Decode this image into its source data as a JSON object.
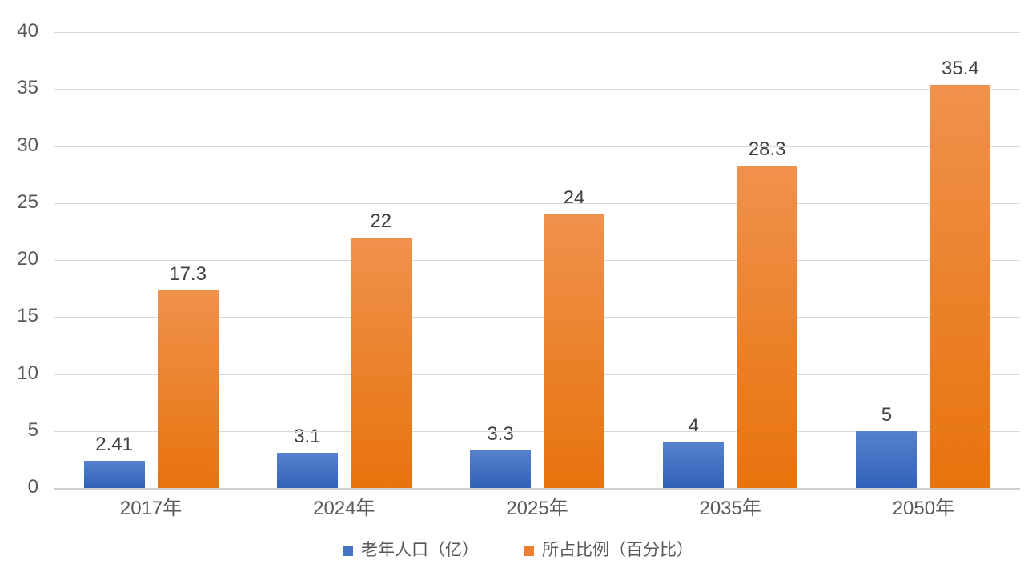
{
  "chart_data": {
    "type": "bar",
    "title": "",
    "xlabel": "",
    "ylabel": "",
    "categories": [
      "2017年",
      "2024年",
      "2025年",
      "2035年",
      "2050年"
    ],
    "series": [
      {
        "name": "老年人口（亿）",
        "values": [
          2.41,
          3.1,
          3.3,
          4,
          5
        ],
        "data_labels": [
          "2.41",
          "3.1",
          "3.3",
          "4",
          "5"
        ],
        "color_top": "#5581CE",
        "color_bottom": "#3161B8",
        "legend_color": "#4472C4"
      },
      {
        "name": "所占比例（百分比）",
        "values": [
          17.3,
          22,
          24,
          28.3,
          35.4
        ],
        "data_labels": [
          "17.3",
          "22",
          "24",
          "28.3",
          "35.4"
        ],
        "color_top": "#F0914C",
        "color_bottom": "#E8730D",
        "legend_color": "#ED7D31"
      }
    ],
    "ylim": [
      0,
      40
    ],
    "ytick_step": 5,
    "yticks": [
      "0",
      "5",
      "10",
      "15",
      "20",
      "25",
      "30",
      "35",
      "40"
    ],
    "grid": true,
    "legend_position": "bottom"
  },
  "colors": {
    "background": "#FFFFFF",
    "gridline": "#D9D9D9",
    "axis_line": "#CFCFCF",
    "tick_text": "#595959",
    "data_label_text": "#404040"
  }
}
